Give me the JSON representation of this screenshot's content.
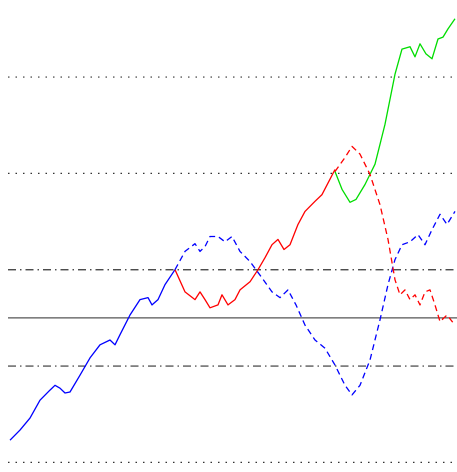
{
  "chart_data": {
    "type": "line",
    "xlim": [
      0,
      457
    ],
    "ylim": [
      -3.2,
      6.6
    ],
    "hlines": [
      {
        "value": 5,
        "style": "dotted",
        "color": "#333333"
      },
      {
        "value": 3,
        "style": "dotted",
        "color": "#333333"
      },
      {
        "value": 1,
        "style": "dashdot",
        "color": "#333333"
      },
      {
        "value": 0,
        "style": "solid",
        "color": "#555555"
      },
      {
        "value": -1,
        "style": "dashdot",
        "color": "#333333"
      },
      {
        "value": -3,
        "style": "dotted",
        "color": "#333333"
      }
    ],
    "series": [
      {
        "color": "#0000ff",
        "style": "solid",
        "x": [
          10,
          20,
          30,
          40,
          50,
          55,
          60,
          65,
          70,
          80,
          90,
          100,
          110,
          115,
          120,
          130,
          140,
          148,
          152,
          158,
          165,
          175
        ],
        "values": [
          -2.54,
          -2.33,
          -2.08,
          -1.71,
          -1.5,
          -1.4,
          -1.46,
          -1.56,
          -1.54,
          -1.19,
          -0.83,
          -0.56,
          -0.46,
          -0.56,
          -0.35,
          0.06,
          0.38,
          0.42,
          0.27,
          0.38,
          0.69,
          1.0
        ]
      },
      {
        "color": "#ff0000",
        "style": "solid",
        "x": [
          175,
          185,
          195,
          200,
          205,
          210,
          218,
          222,
          228,
          235,
          240,
          250,
          258,
          265,
          272,
          278,
          284,
          290,
          298,
          305,
          315,
          322,
          330,
          335
        ],
        "values": [
          1.0,
          0.54,
          0.38,
          0.54,
          0.38,
          0.21,
          0.27,
          0.48,
          0.27,
          0.38,
          0.58,
          0.75,
          1.0,
          1.25,
          1.52,
          1.63,
          1.42,
          1.52,
          1.94,
          2.21,
          2.42,
          2.56,
          2.88,
          3.08
        ]
      },
      {
        "color": "#0000ff",
        "style": "dashed",
        "x": [
          175,
          185,
          195,
          200,
          205,
          210,
          218,
          225,
          232,
          240,
          250,
          262,
          272,
          280,
          288,
          296,
          305,
          315,
          325,
          335,
          345,
          352,
          360,
          370,
          380,
          388,
          395,
          402,
          410,
          418,
          425,
          432,
          440,
          447,
          455
        ],
        "values": [
          1.0,
          1.38,
          1.54,
          1.38,
          1.48,
          1.69,
          1.69,
          1.58,
          1.69,
          1.38,
          1.17,
          0.83,
          0.54,
          0.42,
          0.58,
          0.27,
          -0.15,
          -0.46,
          -0.63,
          -0.98,
          -1.4,
          -1.6,
          -1.4,
          -0.875,
          -0.04,
          0.69,
          1.21,
          1.52,
          1.58,
          1.73,
          1.52,
          1.83,
          2.15,
          1.94,
          2.21
        ]
      },
      {
        "color": "#00dd00",
        "style": "solid",
        "x": [
          335,
          342,
          350,
          356,
          365,
          375,
          385,
          395,
          402,
          410,
          415,
          420,
          426,
          432,
          438,
          443,
          448,
          455
        ],
        "values": [
          3.04,
          2.67,
          2.4,
          2.46,
          2.77,
          3.19,
          4.02,
          5.06,
          5.58,
          5.63,
          5.42,
          5.69,
          5.48,
          5.38,
          5.79,
          5.83,
          6.0,
          6.21
        ]
      },
      {
        "color": "#ff0000",
        "style": "dashed",
        "x": [
          335,
          345,
          352,
          360,
          370,
          380,
          388,
          395,
          400,
          405,
          410,
          415,
          420,
          425,
          430,
          435,
          440,
          447,
          455
        ],
        "values": [
          3.04,
          3.33,
          3.56,
          3.4,
          2.98,
          2.35,
          1.63,
          0.79,
          0.48,
          0.58,
          0.38,
          0.48,
          0.27,
          0.54,
          0.58,
          0.27,
          -0.08,
          0.06,
          -0.15
        ]
      }
    ]
  }
}
